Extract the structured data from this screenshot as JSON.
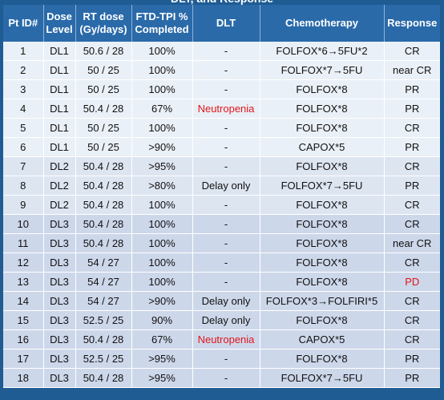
{
  "title_fragment": "DLT, and Response",
  "header": {
    "pt_id": "Pt ID#",
    "dose_level": [
      "Dose",
      "Level"
    ],
    "rt_dose": [
      "RT dose",
      "(Gy/days)"
    ],
    "ftd_tpi": [
      "FTD-TPI %",
      "Completed"
    ],
    "dlt": "DLT",
    "chemotherapy": "Chemotherapy",
    "response": "Response"
  },
  "colors": {
    "header_bg": "#2a6aa9",
    "page_bg": "#1f5c93",
    "highlight_red": "#e0161b"
  },
  "rows": [
    {
      "id": "1",
      "level": "DL1",
      "rt": "50.6 / 28",
      "ftd": "100%",
      "dlt": "-",
      "chemo": "FOLFOX*6→5FU*2",
      "response": "CR"
    },
    {
      "id": "2",
      "level": "DL1",
      "rt": "50 / 25",
      "ftd": "100%",
      "dlt": "-",
      "chemo": "FOLFOX*7→5FU",
      "response": "near CR"
    },
    {
      "id": "3",
      "level": "DL1",
      "rt": "50 / 25",
      "ftd": "100%",
      "dlt": "-",
      "chemo": "FOLFOX*8",
      "response": "PR"
    },
    {
      "id": "4",
      "level": "DL1",
      "rt": "50.4 / 28",
      "ftd": "67%",
      "dlt": "Neutropenia",
      "chemo": "FOLFOX*8",
      "response": "PR"
    },
    {
      "id": "5",
      "level": "DL1",
      "rt": "50 / 25",
      "ftd": "100%",
      "dlt": "-",
      "chemo": "FOLFOX*8",
      "response": "CR"
    },
    {
      "id": "6",
      "level": "DL1",
      "rt": "50 / 25",
      "ftd": ">90%",
      "dlt": "-",
      "chemo": "CAPOX*5",
      "response": "PR"
    },
    {
      "id": "7",
      "level": "DL2",
      "rt": "50.4 / 28",
      "ftd": ">95%",
      "dlt": "-",
      "chemo": "FOLFOX*8",
      "response": "CR"
    },
    {
      "id": "8",
      "level": "DL2",
      "rt": "50.4 / 28",
      "ftd": ">80%",
      "dlt": "Delay only",
      "chemo": "FOLFOX*7→5FU",
      "response": "PR"
    },
    {
      "id": "9",
      "level": "DL2",
      "rt": "50.4 / 28",
      "ftd": "100%",
      "dlt": "-",
      "chemo": "FOLFOX*8",
      "response": "CR"
    },
    {
      "id": "10",
      "level": "DL3",
      "rt": "50.4 / 28",
      "ftd": "100%",
      "dlt": "-",
      "chemo": "FOLFOX*8",
      "response": "CR"
    },
    {
      "id": "11",
      "level": "DL3",
      "rt": "50.4 / 28",
      "ftd": "100%",
      "dlt": "-",
      "chemo": "FOLFOX*8",
      "response": "near CR"
    },
    {
      "id": "12",
      "level": "DL3",
      "rt": "54 / 27",
      "ftd": "100%",
      "dlt": "-",
      "chemo": "FOLFOX*8",
      "response": "CR"
    },
    {
      "id": "13",
      "level": "DL3",
      "rt": "54 / 27",
      "ftd": "100%",
      "dlt": "-",
      "chemo": "FOLFOX*8",
      "response": "PD"
    },
    {
      "id": "14",
      "level": "DL3",
      "rt": "54 / 27",
      "ftd": ">90%",
      "dlt": "Delay only",
      "chemo": "FOLFOX*3→FOLFIRI*5",
      "response": "CR"
    },
    {
      "id": "15",
      "level": "DL3",
      "rt": "52.5 / 25",
      "ftd": "90%",
      "dlt": "Delay only",
      "chemo": "FOLFOX*8",
      "response": "CR"
    },
    {
      "id": "16",
      "level": "DL3",
      "rt": "50.4 / 28",
      "ftd": "67%",
      "dlt": "Neutropenia",
      "chemo": "CAPOX*5",
      "response": "CR"
    },
    {
      "id": "17",
      "level": "DL3",
      "rt": "52.5 / 25",
      "ftd": ">95%",
      "dlt": "-",
      "chemo": "FOLFOX*8",
      "response": "PR"
    },
    {
      "id": "18",
      "level": "DL3",
      "rt": "50.4 / 28",
      "ftd": ">95%",
      "dlt": "-",
      "chemo": "FOLFOX*7→5FU",
      "response": "PR"
    }
  ]
}
